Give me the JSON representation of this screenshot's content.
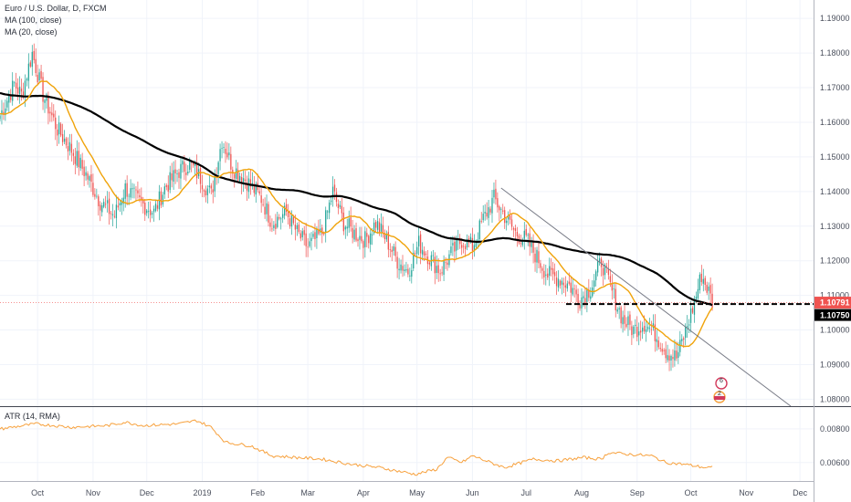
{
  "chart_data": [
    {
      "type": "candlestick",
      "legend": [
        "Euro / U.S. Dollar, D, FXCM",
        "MA (100, close)",
        "MA (20, close)"
      ],
      "x_ticks": [
        "Oct",
        "Nov",
        "Dec",
        "2019",
        "Feb",
        "Mar",
        "Apr",
        "May",
        "Jun",
        "Jul",
        "Aug",
        "Sep",
        "Oct",
        "Nov",
        "Dec"
      ],
      "y_ticks": [
        "1.19000",
        "1.18000",
        "1.17000",
        "1.16000",
        "1.15000",
        "1.14000",
        "1.13000",
        "1.12000",
        "1.11000",
        "1.10000",
        "1.09000",
        "1.08000"
      ],
      "ylim": [
        1.078,
        1.194
      ],
      "grid": true,
      "close_anchors": [
        [
          0,
          1.162
        ],
        [
          8,
          1.171
        ],
        [
          12,
          1.168
        ],
        [
          18,
          1.18
        ],
        [
          24,
          1.168
        ],
        [
          32,
          1.158
        ],
        [
          40,
          1.152
        ],
        [
          48,
          1.145
        ],
        [
          56,
          1.137
        ],
        [
          64,
          1.133
        ],
        [
          70,
          1.141
        ],
        [
          78,
          1.137
        ],
        [
          86,
          1.134
        ],
        [
          92,
          1.141
        ],
        [
          100,
          1.146
        ],
        [
          106,
          1.148
        ],
        [
          112,
          1.144
        ],
        [
          118,
          1.139
        ],
        [
          124,
          1.155
        ],
        [
          130,
          1.147
        ],
        [
          138,
          1.143
        ],
        [
          146,
          1.138
        ],
        [
          152,
          1.131
        ],
        [
          160,
          1.134
        ],
        [
          166,
          1.128
        ],
        [
          172,
          1.124
        ],
        [
          180,
          1.128
        ],
        [
          186,
          1.14
        ],
        [
          192,
          1.131
        ],
        [
          198,
          1.128
        ],
        [
          204,
          1.126
        ],
        [
          210,
          1.131
        ],
        [
          216,
          1.126
        ],
        [
          222,
          1.12
        ],
        [
          228,
          1.117
        ],
        [
          234,
          1.125
        ],
        [
          240,
          1.121
        ],
        [
          246,
          1.117
        ],
        [
          252,
          1.122
        ],
        [
          258,
          1.126
        ],
        [
          264,
          1.124
        ],
        [
          270,
          1.132
        ],
        [
          276,
          1.138
        ],
        [
          282,
          1.133
        ],
        [
          288,
          1.128
        ],
        [
          294,
          1.126
        ],
        [
          300,
          1.121
        ],
        [
          306,
          1.116
        ],
        [
          312,
          1.115
        ],
        [
          318,
          1.113
        ],
        [
          324,
          1.109
        ],
        [
          330,
          1.112
        ],
        [
          336,
          1.12
        ],
        [
          342,
          1.111
        ],
        [
          348,
          1.103
        ],
        [
          354,
          1.1
        ],
        [
          360,
          1.102
        ],
        [
          366,
          1.099
        ],
        [
          372,
          1.094
        ],
        [
          378,
          1.092
        ],
        [
          382,
          1.098
        ],
        [
          388,
          1.108
        ],
        [
          392,
          1.116
        ],
        [
          396,
          1.111
        ],
        [
          398,
          1.108
        ]
      ],
      "price_tags": [
        {
          "label": "1.10791",
          "value": 1.10791,
          "color": "#ef5350"
        },
        {
          "label": "1.10750",
          "value": 1.1075,
          "color": "#000000"
        }
      ],
      "trendline": {
        "start": [
          1.141,
          262
        ],
        "end": [
          1.078,
          414
        ]
      },
      "support_level": 1.1075,
      "events": [
        "6",
        "2"
      ]
    },
    {
      "type": "line",
      "legend": "ATR (14, RMA)",
      "y_ticks": [
        "0.00800",
        "0.00600"
      ],
      "ylim": [
        0.0049,
        0.0093
      ],
      "anchors": [
        [
          0,
          0.008
        ],
        [
          20,
          0.0083
        ],
        [
          40,
          0.0081
        ],
        [
          60,
          0.0082
        ],
        [
          70,
          0.0084
        ],
        [
          80,
          0.0082
        ],
        [
          100,
          0.0083
        ],
        [
          110,
          0.0085
        ],
        [
          118,
          0.0081
        ],
        [
          126,
          0.0072
        ],
        [
          140,
          0.007
        ],
        [
          152,
          0.0064
        ],
        [
          166,
          0.0063
        ],
        [
          180,
          0.0062
        ],
        [
          196,
          0.0059
        ],
        [
          212,
          0.0057
        ],
        [
          232,
          0.0053
        ],
        [
          244,
          0.0056
        ],
        [
          250,
          0.0063
        ],
        [
          258,
          0.006
        ],
        [
          264,
          0.0064
        ],
        [
          274,
          0.006
        ],
        [
          282,
          0.0057
        ],
        [
          298,
          0.0062
        ],
        [
          312,
          0.0061
        ],
        [
          326,
          0.0063
        ],
        [
          336,
          0.0062
        ],
        [
          340,
          0.0066
        ],
        [
          350,
          0.0065
        ],
        [
          364,
          0.0064
        ],
        [
          372,
          0.006
        ],
        [
          382,
          0.0059
        ],
        [
          394,
          0.0057
        ],
        [
          398,
          0.0057
        ]
      ],
      "color": "#f7a13d"
    }
  ]
}
